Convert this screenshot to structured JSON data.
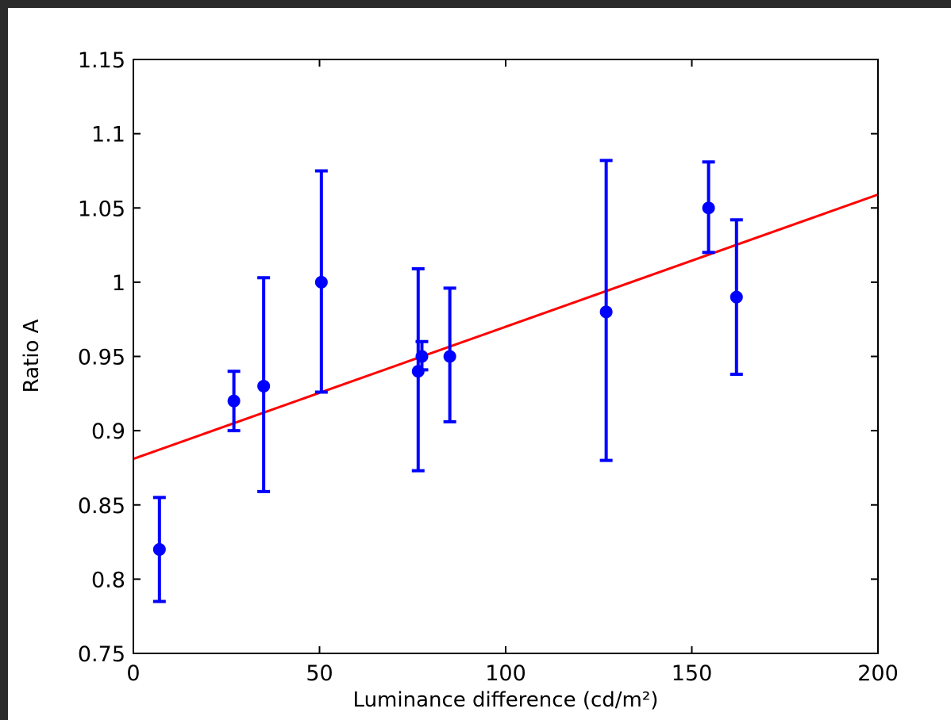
{
  "chart_data": {
    "type": "scatter",
    "title": "",
    "xlabel": "Luminance difference (cd/m²)",
    "ylabel": "Ratio A",
    "xlim": [
      0,
      200
    ],
    "ylim": [
      0.75,
      1.15
    ],
    "xticks": [
      0,
      50,
      100,
      150,
      200
    ],
    "yticks": [
      0.75,
      0.8,
      0.85,
      0.9,
      0.95,
      1,
      1.05,
      1.1,
      1.15
    ],
    "xtick_labels": [
      "0",
      "50",
      "100",
      "150",
      "200"
    ],
    "ytick_labels": [
      "0.75",
      "0.8",
      "0.85",
      "0.9",
      "0.95",
      "1",
      "1.05",
      "1.1",
      "1.15"
    ],
    "grid": false,
    "legend": "none",
    "series": [
      {
        "kind": "errorbar",
        "color": "#0000ff",
        "points": [
          {
            "x": 7,
            "y": 0.82,
            "ylow": 0.785,
            "yhigh": 0.855
          },
          {
            "x": 27,
            "y": 0.92,
            "ylow": 0.9,
            "yhigh": 0.94
          },
          {
            "x": 35,
            "y": 0.93,
            "ylow": 0.859,
            "yhigh": 1.003
          },
          {
            "x": 50.5,
            "y": 1.0,
            "ylow": 0.926,
            "yhigh": 1.075
          },
          {
            "x": 76.5,
            "y": 0.94,
            "ylow": 0.873,
            "yhigh": 1.009
          },
          {
            "x": 77.5,
            "y": 0.95,
            "ylow": 0.941,
            "yhigh": 0.96
          },
          {
            "x": 85,
            "y": 0.95,
            "ylow": 0.906,
            "yhigh": 0.996
          },
          {
            "x": 127,
            "y": 0.98,
            "ylow": 0.88,
            "yhigh": 1.082
          },
          {
            "x": 154.5,
            "y": 1.05,
            "ylow": 1.02,
            "yhigh": 1.081
          },
          {
            "x": 162,
            "y": 0.99,
            "ylow": 0.938,
            "yhigh": 1.042
          }
        ]
      },
      {
        "kind": "fit-line",
        "color": "#ff0000",
        "x": [
          0,
          200
        ],
        "y": [
          0.881,
          1.059
        ]
      }
    ]
  }
}
